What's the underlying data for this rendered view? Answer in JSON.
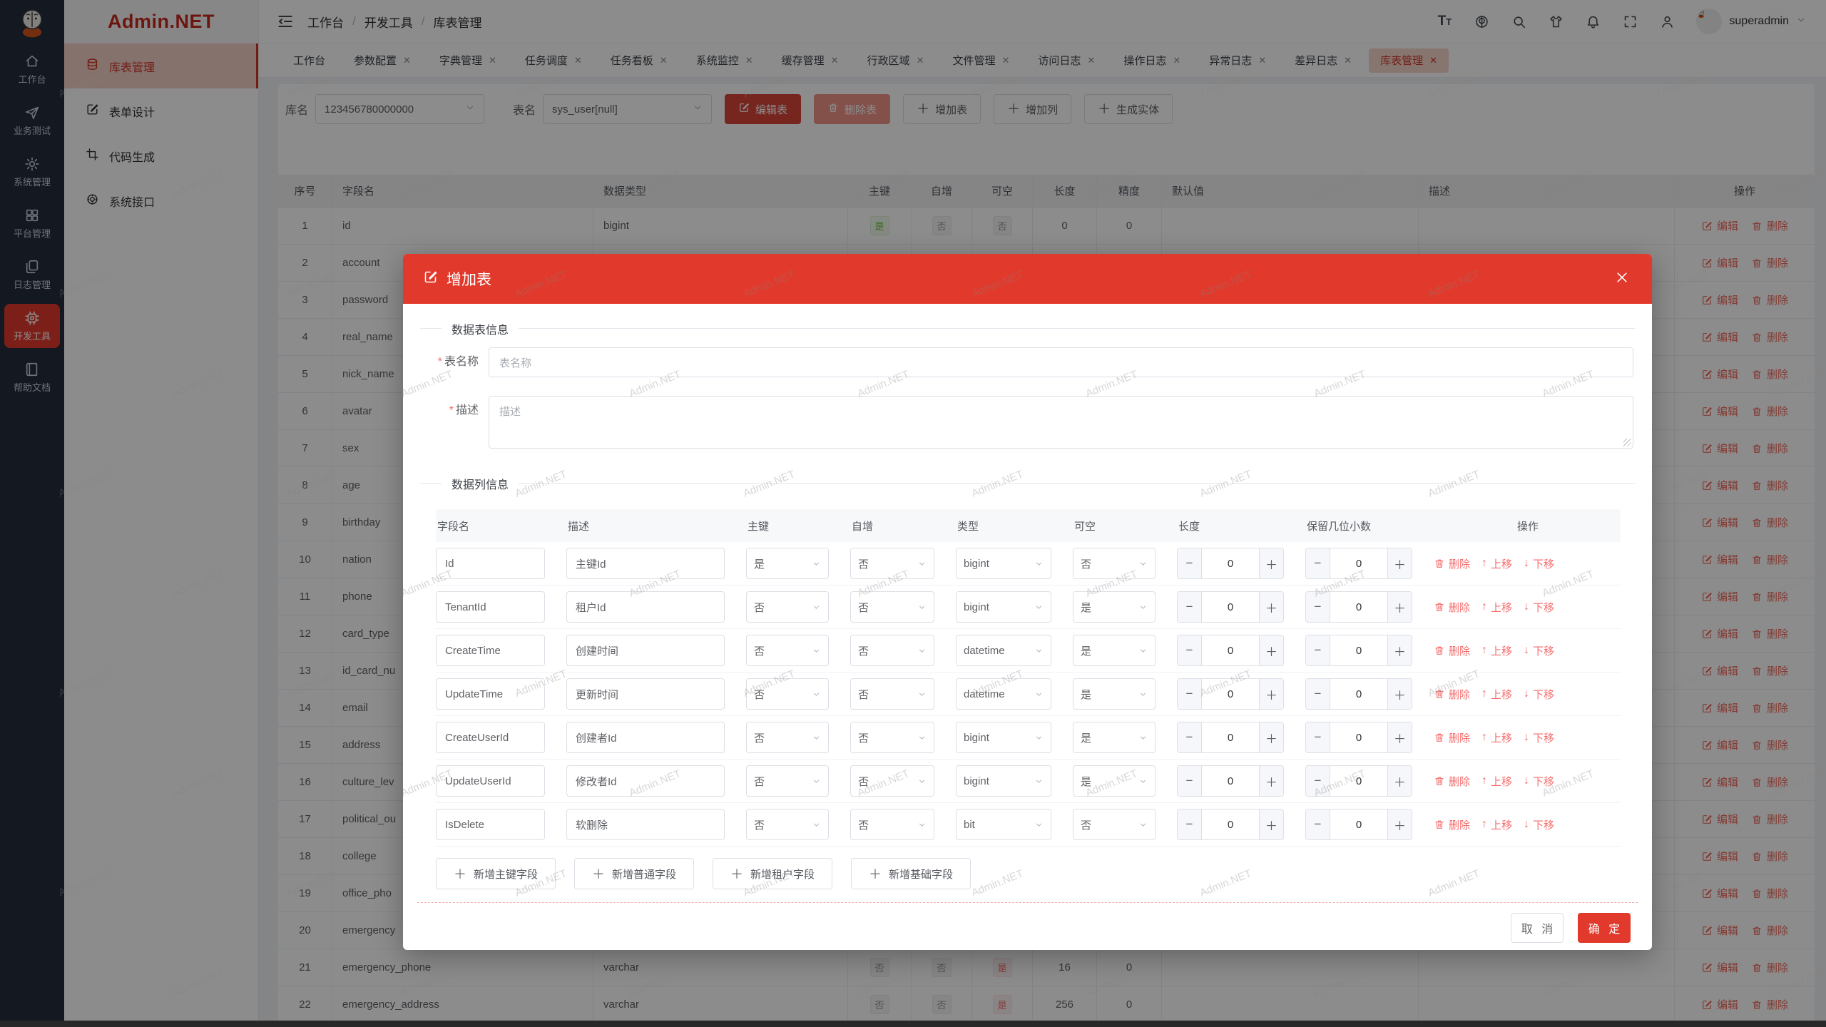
{
  "watermark": "Admin.NET",
  "colors": {
    "primary": "#e13a2c",
    "tag_green": "#67c23a",
    "tag_gray": "#909399",
    "tag_red": "#f56c6c"
  },
  "sidebar": {
    "items": [
      {
        "icon": "home",
        "label": "工作台",
        "active": false
      },
      {
        "icon": "send",
        "label": "业务测试",
        "active": false
      },
      {
        "icon": "gear",
        "label": "系统管理",
        "active": false
      },
      {
        "icon": "grid",
        "label": "平台管理",
        "active": false
      },
      {
        "icon": "docs",
        "label": "日志管理",
        "active": false
      },
      {
        "icon": "chip",
        "label": "开发工具",
        "active": true
      },
      {
        "icon": "book",
        "label": "帮助文档",
        "active": false
      }
    ]
  },
  "submenu": {
    "logo": "Admin.NET",
    "items": [
      {
        "icon": "database",
        "label": "库表管理",
        "active": true
      },
      {
        "icon": "editsq",
        "label": "表单设计",
        "active": false
      },
      {
        "icon": "crop",
        "label": "代码生成",
        "active": false
      },
      {
        "icon": "api",
        "label": "系统接口",
        "active": false
      }
    ]
  },
  "navbar": {
    "breadcrumb": [
      "工作台",
      "开发工具",
      "库表管理"
    ],
    "user": "superadmin",
    "icons": [
      "font-size",
      "language",
      "search",
      "theme",
      "notification",
      "fullscreen",
      "profile"
    ]
  },
  "tabs": [
    {
      "label": "工作台",
      "closable": false,
      "active": false
    },
    {
      "label": "参数配置",
      "closable": true,
      "active": false
    },
    {
      "label": "字典管理",
      "closable": true,
      "active": false
    },
    {
      "label": "任务调度",
      "closable": true,
      "active": false
    },
    {
      "label": "任务看板",
      "closable": true,
      "active": false
    },
    {
      "label": "系统监控",
      "closable": true,
      "active": false
    },
    {
      "label": "缓存管理",
      "closable": true,
      "active": false
    },
    {
      "label": "行政区域",
      "closable": true,
      "active": false
    },
    {
      "label": "文件管理",
      "closable": true,
      "active": false
    },
    {
      "label": "访问日志",
      "closable": true,
      "active": false
    },
    {
      "label": "操作日志",
      "closable": true,
      "active": false
    },
    {
      "label": "异常日志",
      "closable": true,
      "active": false
    },
    {
      "label": "差异日志",
      "closable": true,
      "active": false
    },
    {
      "label": "库表管理",
      "closable": true,
      "active": true
    }
  ],
  "toolbar": {
    "db_label": "库名",
    "db_value": "123456780000000",
    "table_label": "表名",
    "table_value": "sys_user[null]",
    "buttons": [
      {
        "label": "编辑表",
        "style": "danger",
        "icon": "pencil"
      },
      {
        "label": "删除表",
        "style": "danger-light",
        "icon": "trash"
      },
      {
        "label": "增加表",
        "style": "plain",
        "icon": "plus"
      },
      {
        "label": "增加列",
        "style": "plain",
        "icon": "plus"
      },
      {
        "label": "生成实体",
        "style": "plain",
        "icon": "plus"
      }
    ]
  },
  "table": {
    "headers": [
      "序号",
      "字段名",
      "数据类型",
      "主键",
      "自增",
      "可空",
      "长度",
      "精度",
      "默认值",
      "描述",
      "操作"
    ],
    "row_actions": {
      "edit": "编辑",
      "del": "删除"
    },
    "rows": [
      {
        "n": "1",
        "field": "id",
        "type": "bigint",
        "pk": "是",
        "pk_c": "green",
        "ai": "否",
        "ai_c": "gray",
        "nul": "否",
        "nul_c": "gray",
        "len": "0",
        "prec": "0"
      },
      {
        "n": "2",
        "field": "account"
      },
      {
        "n": "3",
        "field": "password"
      },
      {
        "n": "4",
        "field": "real_name"
      },
      {
        "n": "5",
        "field": "nick_name"
      },
      {
        "n": "6",
        "field": "avatar"
      },
      {
        "n": "7",
        "field": "sex"
      },
      {
        "n": "8",
        "field": "age"
      },
      {
        "n": "9",
        "field": "birthday"
      },
      {
        "n": "10",
        "field": "nation"
      },
      {
        "n": "11",
        "field": "phone"
      },
      {
        "n": "12",
        "field": "card_type"
      },
      {
        "n": "13",
        "field": "id_card_nu"
      },
      {
        "n": "14",
        "field": "email"
      },
      {
        "n": "15",
        "field": "address"
      },
      {
        "n": "16",
        "field": "culture_lev"
      },
      {
        "n": "17",
        "field": "political_ou"
      },
      {
        "n": "18",
        "field": "college"
      },
      {
        "n": "19",
        "field": "office_pho"
      },
      {
        "n": "20",
        "field": "emergency"
      },
      {
        "n": "21",
        "field": "emergency_phone",
        "type": "varchar",
        "pk": "否",
        "pk_c": "gray",
        "ai": "否",
        "ai_c": "gray",
        "nul": "是",
        "nul_c": "red",
        "len": "16",
        "prec": "0"
      },
      {
        "n": "22",
        "field": "emergency_address",
        "type": "varchar",
        "pk": "否",
        "pk_c": "gray",
        "ai": "否",
        "ai_c": "gray",
        "nul": "是",
        "nul_c": "red",
        "len": "256",
        "prec": "0"
      }
    ]
  },
  "modal": {
    "title": "增加表",
    "section_table": "数据表信息",
    "section_cols": "数据列信息",
    "fields": {
      "name_label": "表名称",
      "name_placeholder": "表名称",
      "desc_label": "描述",
      "desc_placeholder": "描述"
    },
    "columns": {
      "headers": [
        "字段名",
        "描述",
        "主键",
        "自增",
        "类型",
        "可空",
        "长度",
        "保留几位小数",
        "操作"
      ],
      "actions": {
        "del": "删除",
        "up": "上移",
        "down": "下移"
      },
      "rows": [
        {
          "field": "Id",
          "desc": "主键Id",
          "pk": "是",
          "ai": "否",
          "type": "bigint",
          "nul": "否",
          "len": "0",
          "dec": "0"
        },
        {
          "field": "TenantId",
          "desc": "租户Id",
          "pk": "否",
          "ai": "否",
          "type": "bigint",
          "nul": "是",
          "len": "0",
          "dec": "0"
        },
        {
          "field": "CreateTime",
          "desc": "创建时间",
          "pk": "否",
          "ai": "否",
          "type": "datetime",
          "nul": "是",
          "len": "0",
          "dec": "0"
        },
        {
          "field": "UpdateTime",
          "desc": "更新时间",
          "pk": "否",
          "ai": "否",
          "type": "datetime",
          "nul": "是",
          "len": "0",
          "dec": "0"
        },
        {
          "field": "CreateUserId",
          "desc": "创建者Id",
          "pk": "否",
          "ai": "否",
          "type": "bigint",
          "nul": "是",
          "len": "0",
          "dec": "0"
        },
        {
          "field": "UpdateUserId",
          "desc": "修改者Id",
          "pk": "否",
          "ai": "否",
          "type": "bigint",
          "nul": "是",
          "len": "0",
          "dec": "0"
        },
        {
          "field": "IsDelete",
          "desc": "软删除",
          "pk": "否",
          "ai": "否",
          "type": "bit",
          "nul": "否",
          "len": "0",
          "dec": "0"
        }
      ]
    },
    "add_buttons": [
      "新增主键字段",
      "新增普通字段",
      "新增租户字段",
      "新增基础字段"
    ],
    "footer": {
      "cancel": "取 消",
      "ok": "确 定"
    }
  }
}
